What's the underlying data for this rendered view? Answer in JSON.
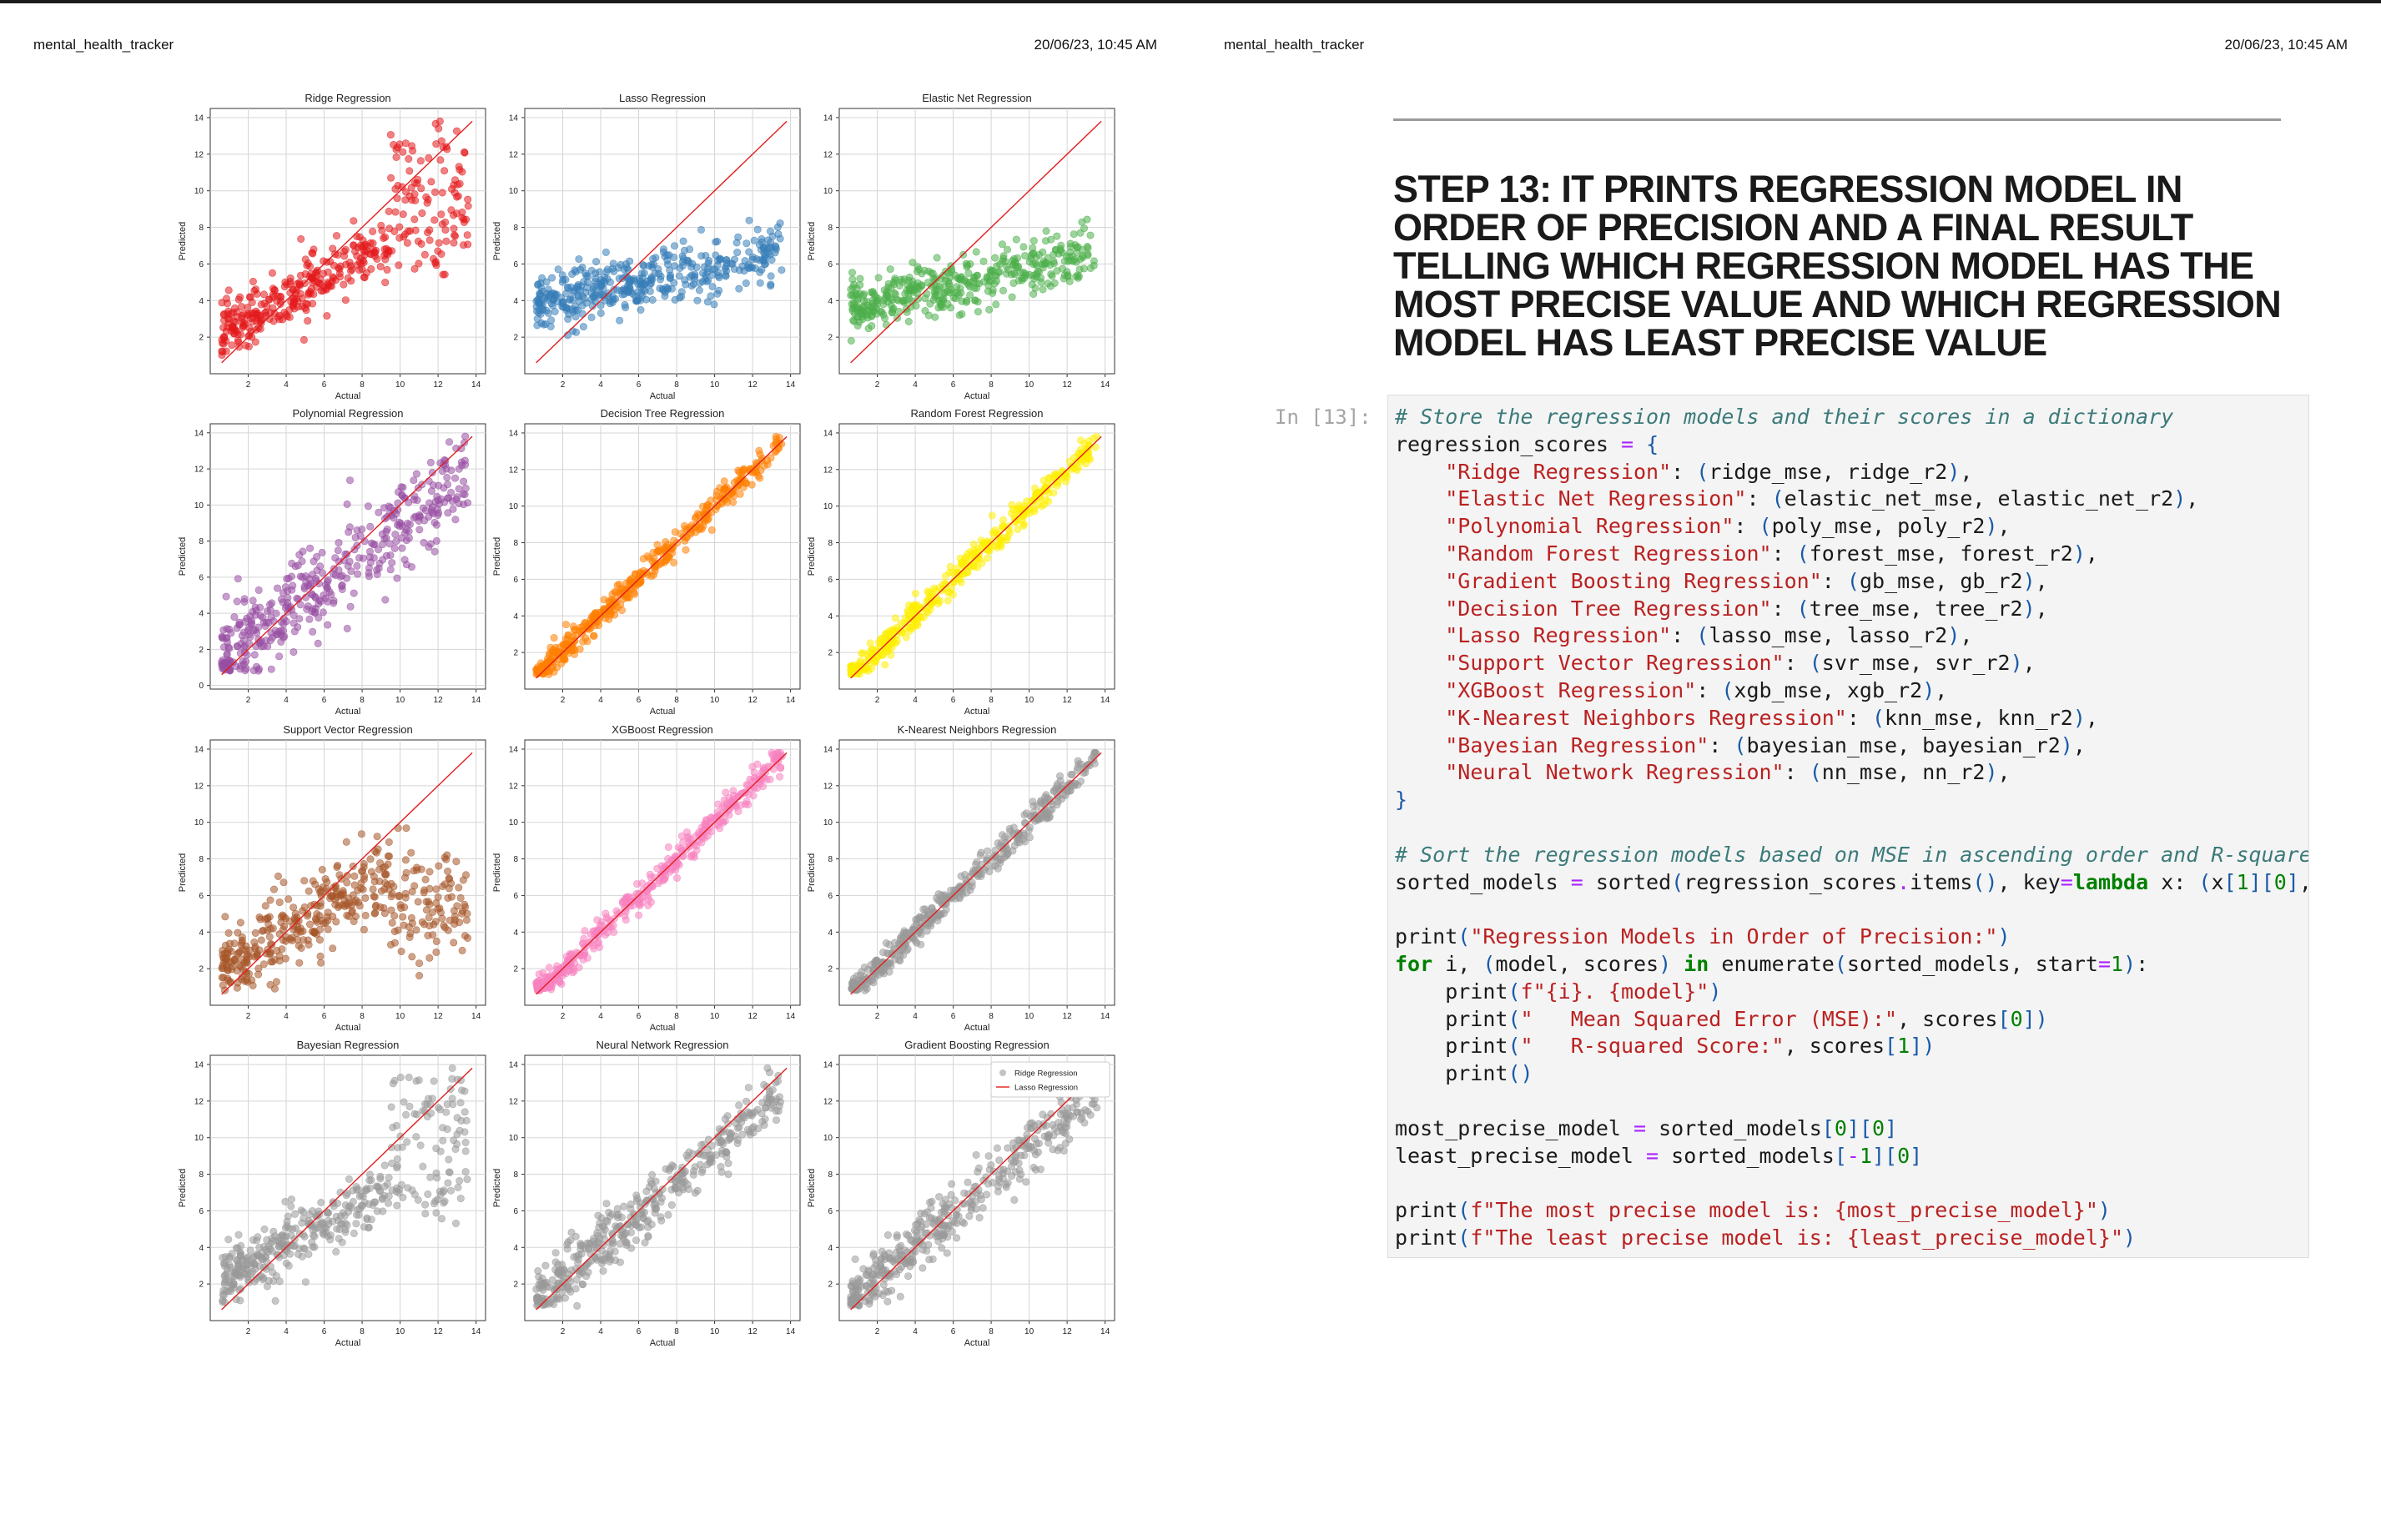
{
  "header": {
    "left": {
      "title": "mental_health_tracker",
      "date": "20/06/23, 10:45 AM"
    },
    "right": {
      "title": "mental_health_tracker",
      "date": "20/06/23, 10:45 AM"
    }
  },
  "charts": {
    "common": {
      "xlabel": "Actual",
      "ylabel": "Predicted",
      "x_ticks": [
        2,
        4,
        6,
        8,
        10,
        12,
        14
      ],
      "y_ticks_default": [
        2,
        4,
        6,
        8,
        10,
        12,
        14
      ]
    },
    "legend": {
      "items": [
        "Ridge Regression",
        "Lasso Regression"
      ]
    }
  },
  "chart_data": [
    {
      "type": "scatter",
      "title": "Ridge Regression",
      "color": "#e41a1c",
      "shape": "wide_upper",
      "y_ticks": [
        2,
        4,
        6,
        8,
        10,
        12,
        14
      ]
    },
    {
      "type": "scatter",
      "title": "Lasso Regression",
      "color": "#377eb8",
      "shape": "flat",
      "y_ticks": [
        2,
        4,
        6,
        8,
        10,
        12,
        14
      ]
    },
    {
      "type": "scatter",
      "title": "Elastic Net Regression",
      "color": "#4daf4a",
      "shape": "flat",
      "y_ticks": [
        2,
        4,
        6,
        8,
        10,
        12,
        14
      ]
    },
    {
      "type": "scatter",
      "title": "Polynomial Regression",
      "color": "#984ea3",
      "shape": "wide",
      "y_ticks": [
        0,
        2,
        4,
        6,
        8,
        10,
        12,
        14
      ]
    },
    {
      "type": "scatter",
      "title": "Decision Tree Regression",
      "color": "#ff7f00",
      "shape": "tight",
      "y_ticks": [
        2,
        4,
        6,
        8,
        10,
        12,
        14
      ]
    },
    {
      "type": "scatter",
      "title": "Random Forest Regression",
      "color": "#ffee00",
      "shape": "tight",
      "y_ticks": [
        2,
        4,
        6,
        8,
        10,
        12,
        14
      ]
    },
    {
      "type": "scatter",
      "title": "Support Vector Regression",
      "color": "#a65628",
      "shape": "wide_lower",
      "y_ticks": [
        2,
        4,
        6,
        8,
        10,
        12,
        14
      ]
    },
    {
      "type": "scatter",
      "title": "XGBoost Regression",
      "color": "#f781bf",
      "shape": "tight",
      "y_ticks": [
        2,
        4,
        6,
        8,
        10,
        12,
        14
      ]
    },
    {
      "type": "scatter",
      "title": "K-Nearest Neighbors Regression",
      "color": "#999999",
      "shape": "tight",
      "y_ticks": [
        2,
        4,
        6,
        8,
        10,
        12,
        14
      ]
    },
    {
      "type": "scatter",
      "title": "Bayesian Regression",
      "color": "#999999",
      "shape": "wide_upper",
      "y_ticks": [
        2,
        4,
        6,
        8,
        10,
        12,
        14
      ]
    },
    {
      "type": "scatter",
      "title": "Neural Network Regression",
      "color": "#999999",
      "shape": "medium",
      "y_ticks": [
        2,
        4,
        6,
        8,
        10,
        12,
        14
      ]
    },
    {
      "type": "scatter",
      "title": "Gradient Boosting Regression",
      "color": "#999999",
      "shape": "medium",
      "y_ticks": [
        2,
        4,
        6,
        8,
        10,
        12,
        14
      ],
      "legend": true
    }
  ],
  "step": {
    "title": "STEP 13: IT PRINTS REGRESSION MODEL IN ORDER OF PRECISION AND A FINAL RESULT TELLING WHICH REGRESSION MODEL HAS THE MOST PRECISE VALUE AND WHICH REGRESSION MODEL HAS LEAST PRECISE VALUE",
    "prompt": "In [13]:"
  },
  "code_lines": [
    [
      {
        "c": "c-com",
        "t": "# Store the regression models and their scores in a dictionary"
      }
    ],
    [
      {
        "c": "",
        "t": "regression_scores "
      },
      {
        "c": "c-op",
        "t": "="
      },
      {
        "c": "",
        "t": " "
      },
      {
        "c": "c-bl",
        "t": "{"
      }
    ],
    [
      {
        "c": "",
        "t": "    "
      },
      {
        "c": "c-str",
        "t": "\"Ridge Regression\""
      },
      {
        "c": "",
        "t": ": "
      },
      {
        "c": "c-bl",
        "t": "("
      },
      {
        "c": "",
        "t": "ridge_mse, ridge_r2"
      },
      {
        "c": "c-bl",
        "t": ")"
      },
      {
        "c": "",
        "t": ","
      }
    ],
    [
      {
        "c": "",
        "t": "    "
      },
      {
        "c": "c-str",
        "t": "\"Elastic Net Regression\""
      },
      {
        "c": "",
        "t": ": "
      },
      {
        "c": "c-bl",
        "t": "("
      },
      {
        "c": "",
        "t": "elastic_net_mse, elastic_net_r2"
      },
      {
        "c": "c-bl",
        "t": ")"
      },
      {
        "c": "",
        "t": ","
      }
    ],
    [
      {
        "c": "",
        "t": "    "
      },
      {
        "c": "c-str",
        "t": "\"Polynomial Regression\""
      },
      {
        "c": "",
        "t": ": "
      },
      {
        "c": "c-bl",
        "t": "("
      },
      {
        "c": "",
        "t": "poly_mse, poly_r2"
      },
      {
        "c": "c-bl",
        "t": ")"
      },
      {
        "c": "",
        "t": ","
      }
    ],
    [
      {
        "c": "",
        "t": "    "
      },
      {
        "c": "c-str",
        "t": "\"Random Forest Regression\""
      },
      {
        "c": "",
        "t": ": "
      },
      {
        "c": "c-bl",
        "t": "("
      },
      {
        "c": "",
        "t": "forest_mse, forest_r2"
      },
      {
        "c": "c-bl",
        "t": ")"
      },
      {
        "c": "",
        "t": ","
      }
    ],
    [
      {
        "c": "",
        "t": "    "
      },
      {
        "c": "c-str",
        "t": "\"Gradient Boosting Regression\""
      },
      {
        "c": "",
        "t": ": "
      },
      {
        "c": "c-bl",
        "t": "("
      },
      {
        "c": "",
        "t": "gb_mse, gb_r2"
      },
      {
        "c": "c-bl",
        "t": ")"
      },
      {
        "c": "",
        "t": ","
      }
    ],
    [
      {
        "c": "",
        "t": "    "
      },
      {
        "c": "c-str",
        "t": "\"Decision Tree Regression\""
      },
      {
        "c": "",
        "t": ": "
      },
      {
        "c": "c-bl",
        "t": "("
      },
      {
        "c": "",
        "t": "tree_mse, tree_r2"
      },
      {
        "c": "c-bl",
        "t": ")"
      },
      {
        "c": "",
        "t": ","
      }
    ],
    [
      {
        "c": "",
        "t": "    "
      },
      {
        "c": "c-str",
        "t": "\"Lasso Regression\""
      },
      {
        "c": "",
        "t": ": "
      },
      {
        "c": "c-bl",
        "t": "("
      },
      {
        "c": "",
        "t": "lasso_mse, lasso_r2"
      },
      {
        "c": "c-bl",
        "t": ")"
      },
      {
        "c": "",
        "t": ","
      }
    ],
    [
      {
        "c": "",
        "t": "    "
      },
      {
        "c": "c-str",
        "t": "\"Support Vector Regression\""
      },
      {
        "c": "",
        "t": ": "
      },
      {
        "c": "c-bl",
        "t": "("
      },
      {
        "c": "",
        "t": "svr_mse, svr_r2"
      },
      {
        "c": "c-bl",
        "t": ")"
      },
      {
        "c": "",
        "t": ","
      }
    ],
    [
      {
        "c": "",
        "t": "    "
      },
      {
        "c": "c-str",
        "t": "\"XGBoost Regression\""
      },
      {
        "c": "",
        "t": ": "
      },
      {
        "c": "c-bl",
        "t": "("
      },
      {
        "c": "",
        "t": "xgb_mse, xgb_r2"
      },
      {
        "c": "c-bl",
        "t": ")"
      },
      {
        "c": "",
        "t": ","
      }
    ],
    [
      {
        "c": "",
        "t": "    "
      },
      {
        "c": "c-str",
        "t": "\"K-Nearest Neighbors Regression\""
      },
      {
        "c": "",
        "t": ": "
      },
      {
        "c": "c-bl",
        "t": "("
      },
      {
        "c": "",
        "t": "knn_mse, knn_r2"
      },
      {
        "c": "c-bl",
        "t": ")"
      },
      {
        "c": "",
        "t": ","
      }
    ],
    [
      {
        "c": "",
        "t": "    "
      },
      {
        "c": "c-str",
        "t": "\"Bayesian Regression\""
      },
      {
        "c": "",
        "t": ": "
      },
      {
        "c": "c-bl",
        "t": "("
      },
      {
        "c": "",
        "t": "bayesian_mse, bayesian_r2"
      },
      {
        "c": "c-bl",
        "t": ")"
      },
      {
        "c": "",
        "t": ","
      }
    ],
    [
      {
        "c": "",
        "t": "    "
      },
      {
        "c": "c-str",
        "t": "\"Neural Network Regression\""
      },
      {
        "c": "",
        "t": ": "
      },
      {
        "c": "c-bl",
        "t": "("
      },
      {
        "c": "",
        "t": "nn_mse, nn_r2"
      },
      {
        "c": "c-bl",
        "t": ")"
      },
      {
        "c": "",
        "t": ","
      }
    ],
    [
      {
        "c": "c-bl",
        "t": "}"
      }
    ],
    [
      {
        "c": "",
        "t": ""
      }
    ],
    [
      {
        "c": "c-com",
        "t": "# Sort the regression models based on MSE in ascending order and R-square"
      }
    ],
    [
      {
        "c": "",
        "t": "sorted_models "
      },
      {
        "c": "c-op",
        "t": "="
      },
      {
        "c": "",
        "t": " sorted"
      },
      {
        "c": "c-bl",
        "t": "("
      },
      {
        "c": "",
        "t": "regression_scores"
      },
      {
        "c": "c-op",
        "t": "."
      },
      {
        "c": "",
        "t": "items"
      },
      {
        "c": "c-bl",
        "t": "()"
      },
      {
        "c": "",
        "t": ", key"
      },
      {
        "c": "c-op",
        "t": "="
      },
      {
        "c": "c-kw",
        "t": "lambda"
      },
      {
        "c": "",
        "t": " x: "
      },
      {
        "c": "c-bl",
        "t": "("
      },
      {
        "c": "",
        "t": "x"
      },
      {
        "c": "c-bl",
        "t": "["
      },
      {
        "c": "c-num",
        "t": "1"
      },
      {
        "c": "c-bl",
        "t": "]["
      },
      {
        "c": "c-num",
        "t": "0"
      },
      {
        "c": "c-bl",
        "t": "]"
      },
      {
        "c": "",
        "t": ","
      }
    ],
    [
      {
        "c": "",
        "t": ""
      }
    ],
    [
      {
        "c": "",
        "t": "print"
      },
      {
        "c": "c-bl",
        "t": "("
      },
      {
        "c": "c-str",
        "t": "\"Regression Models in Order of Precision:\""
      },
      {
        "c": "c-bl",
        "t": ")"
      }
    ],
    [
      {
        "c": "c-kw",
        "t": "for"
      },
      {
        "c": "",
        "t": " i, "
      },
      {
        "c": "c-bl",
        "t": "("
      },
      {
        "c": "",
        "t": "model, scores"
      },
      {
        "c": "c-bl",
        "t": ")"
      },
      {
        "c": "",
        "t": " "
      },
      {
        "c": "c-kw",
        "t": "in"
      },
      {
        "c": "",
        "t": " enumerate"
      },
      {
        "c": "c-bl",
        "t": "("
      },
      {
        "c": "",
        "t": "sorted_models, start"
      },
      {
        "c": "c-op",
        "t": "="
      },
      {
        "c": "c-num",
        "t": "1"
      },
      {
        "c": "c-bl",
        "t": ")"
      },
      {
        "c": "",
        "t": ":"
      }
    ],
    [
      {
        "c": "",
        "t": "    print"
      },
      {
        "c": "c-bl",
        "t": "("
      },
      {
        "c": "c-str",
        "t": "f\"{i}. {model}\""
      },
      {
        "c": "c-bl",
        "t": ")"
      }
    ],
    [
      {
        "c": "",
        "t": "    print"
      },
      {
        "c": "c-bl",
        "t": "("
      },
      {
        "c": "c-str",
        "t": "\"   Mean Squared Error (MSE):\""
      },
      {
        "c": "",
        "t": ", scores"
      },
      {
        "c": "c-bl",
        "t": "["
      },
      {
        "c": "c-num",
        "t": "0"
      },
      {
        "c": "c-bl",
        "t": "])"
      }
    ],
    [
      {
        "c": "",
        "t": "    print"
      },
      {
        "c": "c-bl",
        "t": "("
      },
      {
        "c": "c-str",
        "t": "\"   R-squared Score:\""
      },
      {
        "c": "",
        "t": ", scores"
      },
      {
        "c": "c-bl",
        "t": "["
      },
      {
        "c": "c-num",
        "t": "1"
      },
      {
        "c": "c-bl",
        "t": "])"
      }
    ],
    [
      {
        "c": "",
        "t": "    print"
      },
      {
        "c": "c-bl",
        "t": "()"
      }
    ],
    [
      {
        "c": "",
        "t": ""
      }
    ],
    [
      {
        "c": "",
        "t": "most_precise_model "
      },
      {
        "c": "c-op",
        "t": "="
      },
      {
        "c": "",
        "t": " sorted_models"
      },
      {
        "c": "c-bl",
        "t": "["
      },
      {
        "c": "c-num",
        "t": "0"
      },
      {
        "c": "c-bl",
        "t": "]["
      },
      {
        "c": "c-num",
        "t": "0"
      },
      {
        "c": "c-bl",
        "t": "]"
      }
    ],
    [
      {
        "c": "",
        "t": "least_precise_model "
      },
      {
        "c": "c-op",
        "t": "="
      },
      {
        "c": "",
        "t": " sorted_models"
      },
      {
        "c": "c-bl",
        "t": "["
      },
      {
        "c": "c-op",
        "t": "-"
      },
      {
        "c": "c-num",
        "t": "1"
      },
      {
        "c": "c-bl",
        "t": "]["
      },
      {
        "c": "c-num",
        "t": "0"
      },
      {
        "c": "c-bl",
        "t": "]"
      }
    ],
    [
      {
        "c": "",
        "t": ""
      }
    ],
    [
      {
        "c": "",
        "t": "print"
      },
      {
        "c": "c-bl",
        "t": "("
      },
      {
        "c": "c-str",
        "t": "f\"The most precise model is: {most_precise_model}\""
      },
      {
        "c": "c-bl",
        "t": ")"
      }
    ],
    [
      {
        "c": "",
        "t": "print"
      },
      {
        "c": "c-bl",
        "t": "("
      },
      {
        "c": "c-str",
        "t": "f\"The least precise model is: {least_precise_model}\""
      },
      {
        "c": "c-bl",
        "t": ")"
      }
    ]
  ]
}
